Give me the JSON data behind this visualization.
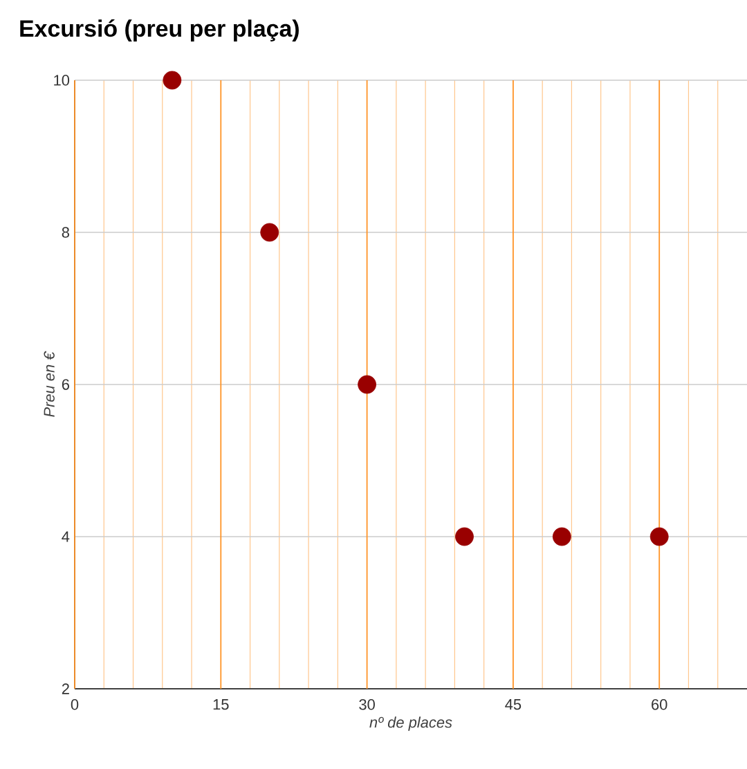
{
  "chart_data": {
    "type": "scatter",
    "title": "Excursió (preu per plaça)",
    "xlabel": "nº de places",
    "ylabel": "Preu en €",
    "x": [
      10,
      20,
      30,
      40,
      50,
      60
    ],
    "series": [
      {
        "color": "#990000",
        "values": [
          10,
          8,
          6,
          4,
          4,
          4
        ]
      }
    ],
    "xlim": [
      0,
      69
    ],
    "xticks": [
      0,
      {
        "value": 3,
        "label": null
      },
      {
        "value": 6,
        "label": null
      },
      {
        "value": 9,
        "label": null
      },
      {
        "value": 12,
        "label": null
      },
      15,
      {
        "value": 18,
        "label": null
      },
      {
        "value": 21,
        "label": null
      },
      {
        "value": 24,
        "label": null
      },
      {
        "value": 27,
        "label": null
      },
      30,
      {
        "value": 33,
        "label": null
      },
      {
        "value": 36,
        "label": null
      },
      {
        "value": 39,
        "label": null
      },
      {
        "value": 42,
        "label": null
      },
      45,
      {
        "value": 48,
        "label": null
      },
      {
        "value": 51,
        "label": null
      },
      {
        "value": 54,
        "label": null
      },
      {
        "value": 57,
        "label": null
      },
      60,
      {
        "value": 63,
        "label": null
      },
      {
        "value": 66,
        "label": null
      }
    ],
    "ylim": [
      2,
      10
    ],
    "yticks": [
      2,
      4,
      6,
      8,
      10
    ],
    "grid": true,
    "marker": "circle"
  }
}
